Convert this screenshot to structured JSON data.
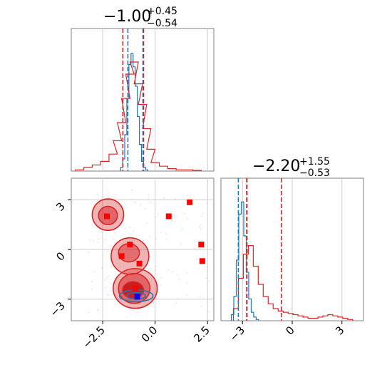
{
  "chart_data": {
    "type": "corner",
    "params": [
      {
        "name": "",
        "title": {
          "value": "−1.00",
          "plus": "+0.45",
          "minus": "−0.54"
        },
        "axis_range": [
          -4.0,
          2.8
        ],
        "ticks": [
          {
            "value": -2.5,
            "label": "−2.5"
          },
          {
            "value": 0.0,
            "label": "0.0"
          },
          {
            "value": 2.5,
            "label": "2.5"
          }
        ]
      },
      {
        "name": "",
        "title": {
          "value": "−2.20",
          "plus": "+1.55",
          "minus": "−0.53"
        },
        "axis_range": [
          -4.3,
          4.3
        ],
        "ticks": [
          {
            "value": -3,
            "label": "−3"
          },
          {
            "value": 0,
            "label": "0"
          },
          {
            "value": 3,
            "label": "3"
          }
        ]
      }
    ],
    "series": [
      {
        "color": "#1f77b4",
        "hist_p1": {
          "bins": [
            -1.6,
            -1.5,
            -1.4,
            -1.3,
            -1.2,
            -1.1,
            -1.0,
            -0.9,
            -0.8,
            -0.7,
            -0.6,
            -0.5,
            -0.4
          ],
          "counts": [
            0.03,
            0.1,
            0.3,
            0.6,
            0.88,
            0.97,
            0.86,
            0.7,
            0.45,
            0.22,
            0.08,
            0.03,
            0.01
          ]
        },
        "quantiles_p1": [
          -1.3,
          -0.58
        ],
        "hist_p2": {
          "bins": [
            -3.6,
            -3.45,
            -3.3,
            -3.15,
            -3.0,
            -2.85,
            -2.7,
            -2.55,
            -2.4,
            -2.25,
            -2.1
          ],
          "counts": [
            0.05,
            0.2,
            0.5,
            0.88,
            0.98,
            0.7,
            0.4,
            0.18,
            0.07,
            0.03,
            0.01
          ]
        },
        "quantiles_p2": [
          -3.25,
          -2.75
        ]
      },
      {
        "color": "#d62728",
        "hist_p1": {
          "bins": [
            -3.6,
            -3.2,
            -2.8,
            -2.4,
            -2.0,
            -1.8,
            -1.6,
            -1.4,
            -1.2,
            -1.0,
            -0.8,
            -0.6,
            -0.4,
            -0.2,
            0.0,
            0.4,
            0.8,
            1.2,
            1.6,
            2.0
          ],
          "counts": [
            0.01,
            0.03,
            0.05,
            0.08,
            0.14,
            0.25,
            0.4,
            0.6,
            0.8,
            0.9,
            0.72,
            0.55,
            0.35,
            0.18,
            0.07,
            0.04,
            0.02,
            0.01,
            0.01,
            0.005
          ]
        },
        "quantiles_p1": [
          -1.54,
          -0.55
        ],
        "hist_p2": {
          "bins": [
            -3.4,
            -3.1,
            -2.8,
            -2.5,
            -2.2,
            -1.9,
            -1.6,
            -1.3,
            -1.0,
            -0.7,
            -0.4,
            -0.1,
            0.2,
            0.5,
            0.8,
            1.1,
            1.4,
            1.7,
            2.0,
            2.3,
            2.6,
            2.9,
            3.2,
            3.5
          ],
          "counts": [
            0.1,
            0.35,
            0.55,
            0.62,
            0.45,
            0.3,
            0.2,
            0.14,
            0.1,
            0.08,
            0.07,
            0.06,
            0.05,
            0.04,
            0.03,
            0.02,
            0.02,
            0.03,
            0.04,
            0.05,
            0.04,
            0.03,
            0.02,
            0.01
          ]
        },
        "quantiles_p2": [
          -2.73,
          -0.65
        ]
      }
    ],
    "markers": {
      "color": "#ff0000",
      "points": [
        {
          "x": -2.3,
          "y": 2.0
        },
        {
          "x": -1.2,
          "y": 0.3
        },
        {
          "x": -1.6,
          "y": -0.4
        },
        {
          "x": -0.75,
          "y": -0.85
        },
        {
          "x": 0.65,
          "y": 2.0
        },
        {
          "x": 1.65,
          "y": 2.85
        },
        {
          "x": 2.2,
          "y": 0.3
        },
        {
          "x": 2.25,
          "y": -0.7
        },
        {
          "x": -0.95,
          "y": -2.35
        }
      ]
    },
    "truth": {
      "color": "#0000ff",
      "x": -0.85,
      "y": -2.85
    },
    "grid": true
  }
}
